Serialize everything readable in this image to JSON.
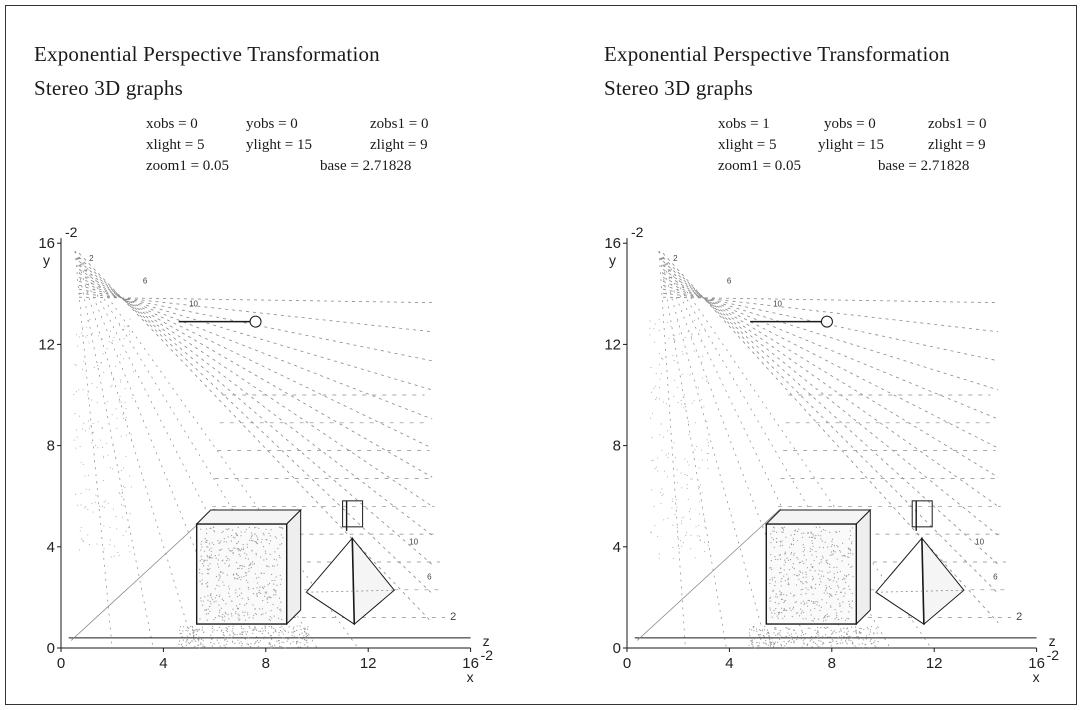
{
  "panels": [
    {
      "title": "Exponential Perspective Transformation",
      "subtitle": "Stereo 3D graphs",
      "params": [
        [
          "xobs = 0",
          "yobs = 0",
          "zobs1 = 0"
        ],
        [
          "xlight = 5",
          "ylight = 15",
          "zlight = 9"
        ],
        [
          "zoom1 = 0.05",
          "base = 2.71828"
        ]
      ],
      "x_ticks": [
        "0",
        "4",
        "8",
        "12",
        "16"
      ],
      "y_ticks": [
        "0",
        "4",
        "8",
        "12",
        "16"
      ],
      "x_label": "x",
      "y_label": "y",
      "z_label": "z",
      "neg_label": "-2",
      "depth_labels": [
        "2",
        "6",
        "10"
      ],
      "right_labels": [
        "2",
        "6",
        "10"
      ]
    },
    {
      "title": "Exponential Perspective Transformation",
      "subtitle": "Stereo 3D graphs",
      "params": [
        [
          "xobs = 1",
          "yobs = 0",
          "zobs1 = 0"
        ],
        [
          "xlight = 5",
          "ylight = 15",
          "zlight = 9"
        ],
        [
          "zoom1 = 0.05",
          "base = 2.71828"
        ]
      ],
      "x_ticks": [
        "0",
        "4",
        "8",
        "12",
        "16"
      ],
      "y_ticks": [
        "0",
        "4",
        "8",
        "12",
        "16"
      ],
      "x_label": "x",
      "y_label": "y",
      "z_label": "z",
      "neg_label": "-2",
      "depth_labels": [
        "2",
        "6",
        "10"
      ],
      "right_labels": [
        "2",
        "6",
        "10"
      ]
    }
  ],
  "colors": {
    "ink": "#1a1a1a",
    "grid": "#8a8a8a",
    "stipple": "#9a9a9a"
  }
}
